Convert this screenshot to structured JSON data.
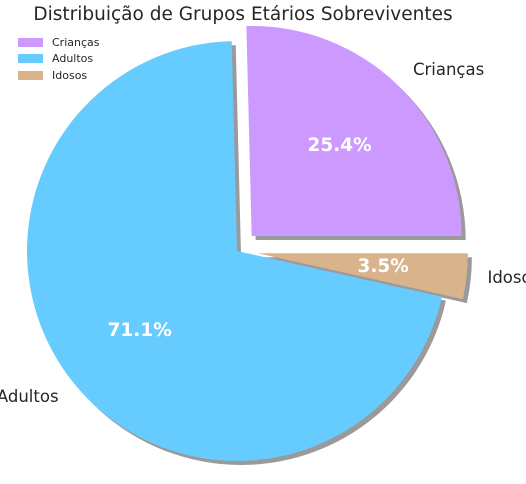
{
  "chart_data": {
    "type": "pie",
    "title": "Distribuição de Grupos Etários Sobreviventes",
    "categories": [
      "Crianças",
      "Adultos",
      "Idosos"
    ],
    "values": [
      25.4,
      71.1,
      3.5
    ],
    "percent_labels": [
      "25.4%",
      "71.1%",
      "3.5%"
    ],
    "colors": [
      "#cc99ff",
      "#66ccff",
      "#d9b38c"
    ],
    "explode": [
      0.1,
      0.0,
      0.1
    ],
    "start_angle_deg": 0,
    "shadow": true,
    "legend_position": "upper-left"
  }
}
